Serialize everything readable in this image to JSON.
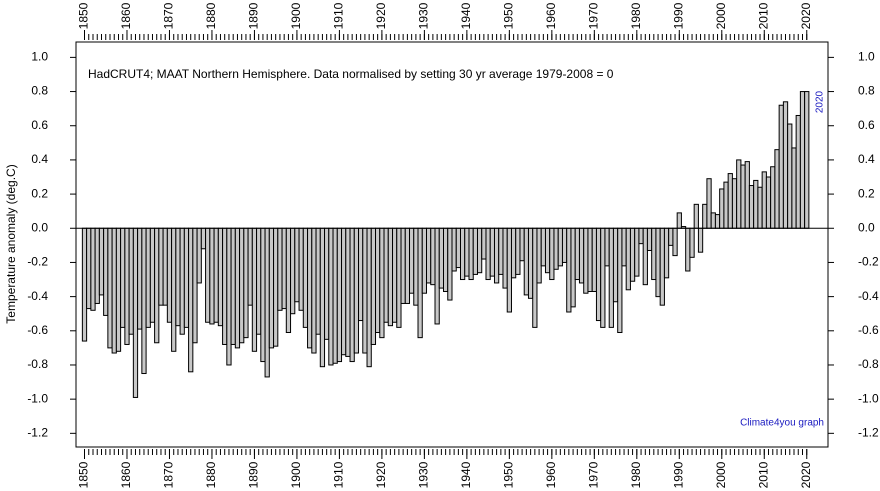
{
  "chart_data": {
    "type": "bar",
    "annotations": [
      "HadCRUT4; MAAT Northern Hemisphere. Data normalised by setting 30 yr average 1979-2008 = 0",
      "2020",
      "Climate4you graph"
    ],
    "y_label": "Temperature anomaly (deg.C)",
    "x": [
      1850,
      1851,
      1852,
      1853,
      1854,
      1855,
      1856,
      1857,
      1858,
      1859,
      1860,
      1861,
      1862,
      1863,
      1864,
      1865,
      1866,
      1867,
      1868,
      1869,
      1870,
      1871,
      1872,
      1873,
      1874,
      1875,
      1876,
      1877,
      1878,
      1879,
      1880,
      1881,
      1882,
      1883,
      1884,
      1885,
      1886,
      1887,
      1888,
      1889,
      1890,
      1891,
      1892,
      1893,
      1894,
      1895,
      1896,
      1897,
      1898,
      1899,
      1900,
      1901,
      1902,
      1903,
      1904,
      1905,
      1906,
      1907,
      1908,
      1909,
      1910,
      1911,
      1912,
      1913,
      1914,
      1915,
      1916,
      1917,
      1918,
      1919,
      1920,
      1921,
      1922,
      1923,
      1924,
      1925,
      1926,
      1927,
      1928,
      1929,
      1930,
      1931,
      1932,
      1933,
      1934,
      1935,
      1936,
      1937,
      1938,
      1939,
      1940,
      1941,
      1942,
      1943,
      1944,
      1945,
      1946,
      1947,
      1948,
      1949,
      1950,
      1951,
      1952,
      1953,
      1954,
      1955,
      1956,
      1957,
      1958,
      1959,
      1960,
      1961,
      1962,
      1963,
      1964,
      1965,
      1966,
      1967,
      1968,
      1969,
      1970,
      1971,
      1972,
      1973,
      1974,
      1975,
      1976,
      1977,
      1978,
      1979,
      1980,
      1981,
      1982,
      1983,
      1984,
      1985,
      1986,
      1987,
      1988,
      1989,
      1990,
      1991,
      1992,
      1993,
      1994,
      1995,
      1996,
      1997,
      1998,
      1999,
      2000,
      2001,
      2002,
      2003,
      2004,
      2005,
      2006,
      2007,
      2008,
      2009,
      2010,
      2011,
      2012,
      2013,
      2014,
      2015,
      2016,
      2017,
      2018,
      2019,
      2020
    ],
    "values": [
      -0.66,
      -0.47,
      -0.48,
      -0.44,
      -0.39,
      -0.51,
      -0.7,
      -0.73,
      -0.72,
      -0.58,
      -0.68,
      -0.62,
      -0.99,
      -0.59,
      -0.85,
      -0.58,
      -0.55,
      -0.67,
      -0.45,
      -0.45,
      -0.55,
      -0.72,
      -0.57,
      -0.62,
      -0.58,
      -0.84,
      -0.67,
      -0.32,
      -0.12,
      -0.55,
      -0.56,
      -0.55,
      -0.57,
      -0.68,
      -0.8,
      -0.68,
      -0.7,
      -0.67,
      -0.64,
      -0.45,
      -0.72,
      -0.62,
      -0.78,
      -0.87,
      -0.7,
      -0.69,
      -0.48,
      -0.47,
      -0.61,
      -0.5,
      -0.43,
      -0.48,
      -0.58,
      -0.7,
      -0.73,
      -0.62,
      -0.81,
      -0.65,
      -0.8,
      -0.79,
      -0.78,
      -0.74,
      -0.75,
      -0.78,
      -0.73,
      -0.54,
      -0.73,
      -0.81,
      -0.68,
      -0.61,
      -0.64,
      -0.55,
      -0.57,
      -0.55,
      -0.58,
      -0.44,
      -0.44,
      -0.38,
      -0.45,
      -0.64,
      -0.38,
      -0.32,
      -0.33,
      -0.56,
      -0.35,
      -0.37,
      -0.42,
      -0.25,
      -0.23,
      -0.3,
      -0.28,
      -0.3,
      -0.27,
      -0.26,
      -0.18,
      -0.3,
      -0.28,
      -0.32,
      -0.27,
      -0.35,
      -0.49,
      -0.29,
      -0.27,
      -0.19,
      -0.39,
      -0.41,
      -0.58,
      -0.32,
      -0.22,
      -0.26,
      -0.3,
      -0.24,
      -0.22,
      -0.2,
      -0.49,
      -0.46,
      -0.3,
      -0.32,
      -0.38,
      -0.37,
      -0.37,
      -0.54,
      -0.58,
      -0.22,
      -0.58,
      -0.43,
      -0.61,
      -0.22,
      -0.36,
      -0.31,
      -0.28,
      -0.09,
      -0.33,
      -0.13,
      -0.3,
      -0.4,
      -0.45,
      -0.29,
      -0.1,
      -0.16,
      0.09,
      0.01,
      -0.25,
      -0.17,
      0.14,
      -0.14,
      0.14,
      0.29,
      0.09,
      0.08,
      0.23,
      0.27,
      0.32,
      0.29,
      0.4,
      0.37,
      0.39,
      0.25,
      0.28,
      0.24,
      0.33,
      0.3,
      0.36,
      0.46,
      0.72,
      0.74,
      0.61,
      0.47,
      0.66,
      0.8,
      0.8
    ],
    "color": "#c8c8c8",
    "xlim": [
      1848,
      2025
    ],
    "xticks": [
      1850,
      1860,
      1870,
      1880,
      1890,
      1900,
      1910,
      1920,
      1930,
      1940,
      1950,
      1960,
      1970,
      1980,
      1990,
      2000,
      2010,
      2020
    ],
    "ylim": [
      -1.28,
      1.09
    ],
    "yticks": [
      {
        "value": 1.0,
        "label": "1.0"
      },
      0.8,
      0.6,
      0.4,
      0.2,
      {
        "value": 0.0,
        "label": "0.0"
      },
      -0.2,
      -0.4,
      -0.6,
      -0.8,
      {
        "value": -1.0,
        "label": "-1.0"
      },
      -1.2
    ],
    "grid": false
  }
}
